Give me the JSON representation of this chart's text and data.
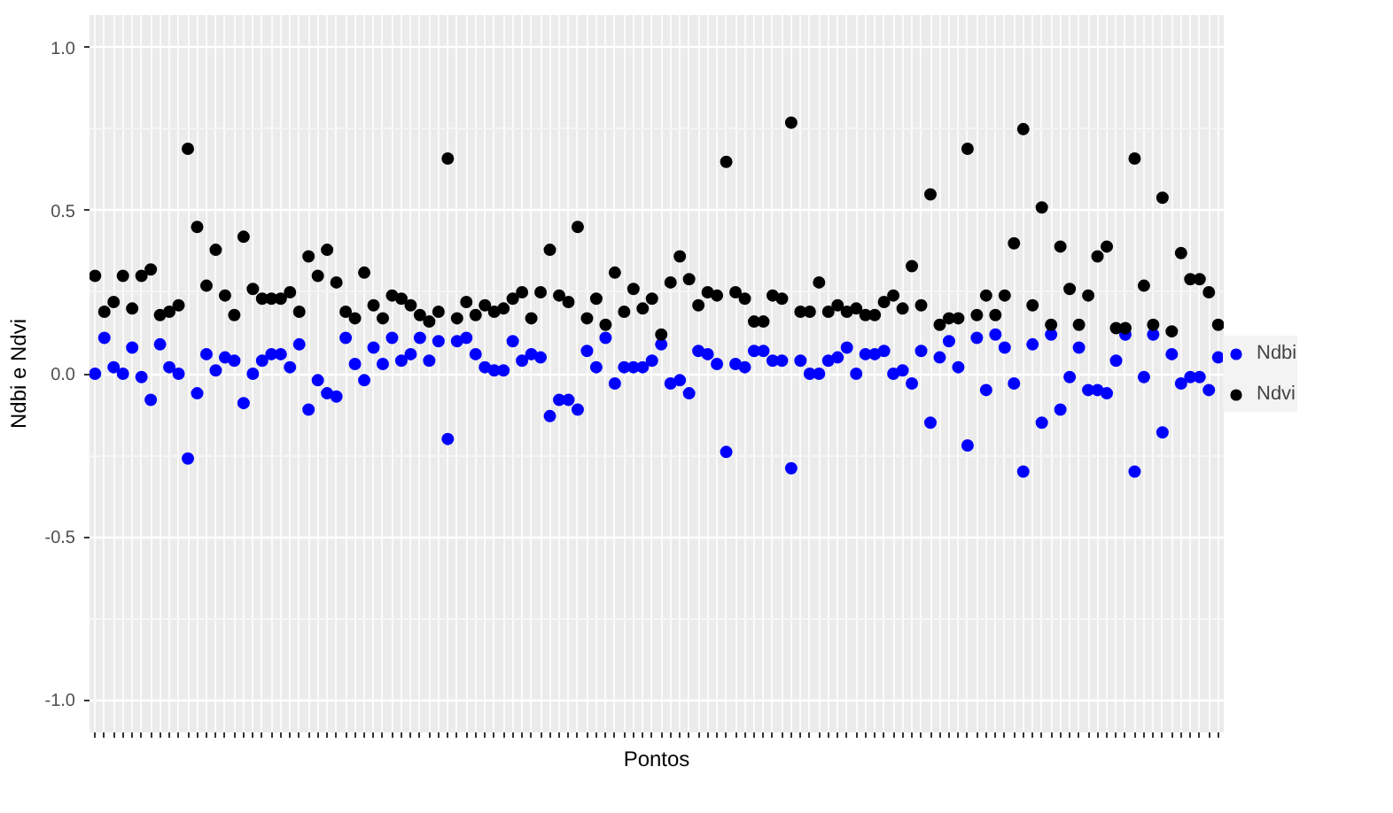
{
  "chart_data": {
    "type": "scatter",
    "xlabel": "Pontos",
    "ylabel": "Ndbi e Ndvi",
    "categories": [
      null,
      null,
      null,
      null,
      null,
      null,
      null,
      null,
      null,
      null,
      null,
      null,
      null,
      null,
      null,
      null,
      null,
      null,
      null,
      null,
      null,
      null,
      null,
      null,
      null,
      null,
      null,
      null,
      null,
      null,
      null,
      null,
      null,
      null,
      null,
      null,
      null,
      null,
      null,
      null,
      null,
      null,
      null,
      null,
      null,
      null,
      null,
      null,
      null,
      null,
      null,
      null,
      null,
      null,
      null,
      null,
      null,
      null,
      null,
      null,
      null,
      null,
      null,
      null,
      null,
      null,
      null,
      null,
      null,
      null,
      null,
      null,
      null,
      null,
      null,
      null,
      null,
      null,
      null,
      null,
      null,
      null,
      null,
      null,
      null,
      null,
      null,
      null,
      null,
      null,
      null,
      null,
      null,
      null,
      null,
      null,
      null,
      null,
      null,
      null,
      null,
      null,
      null,
      null,
      null,
      null,
      null,
      null,
      null,
      null,
      null,
      null,
      null,
      null,
      null,
      null,
      null,
      null,
      null,
      null,
      null,
      null
    ],
    "series": [
      {
        "name": "Ndbi",
        "color": "#0000ff",
        "values": [
          0.0,
          0.11,
          0.02,
          0.0,
          0.08,
          -0.01,
          -0.08,
          0.09,
          0.02,
          0.0,
          -0.26,
          -0.06,
          0.06,
          0.01,
          0.05,
          0.04,
          -0.09,
          0.0,
          0.04,
          0.06,
          0.06,
          0.02,
          0.09,
          -0.11,
          -0.02,
          -0.06,
          -0.07,
          0.11,
          0.03,
          -0.02,
          0.08,
          0.03,
          0.11,
          0.04,
          0.06,
          0.11,
          0.04,
          0.1,
          -0.2,
          0.1,
          0.11,
          0.06,
          0.02,
          0.01,
          0.01,
          0.1,
          0.04,
          0.06,
          0.05,
          -0.13,
          -0.08,
          -0.08,
          -0.11,
          0.07,
          0.02,
          0.11,
          -0.03,
          0.02,
          0.02,
          0.02,
          0.04,
          0.09,
          -0.03,
          -0.02,
          -0.06,
          0.07,
          0.06,
          0.03,
          -0.24,
          0.03,
          0.02,
          0.07,
          0.07,
          0.04,
          0.04,
          -0.29,
          0.04,
          0.0,
          0.0,
          0.04,
          0.05,
          0.08,
          0.0,
          0.06,
          0.06,
          0.07,
          0.0,
          0.01,
          -0.03,
          0.07,
          -0.15,
          0.05,
          0.1,
          0.02,
          -0.22,
          0.11,
          -0.05,
          0.12,
          0.08,
          -0.03,
          -0.3,
          0.09,
          -0.15,
          0.12,
          -0.11,
          -0.01,
          0.08,
          -0.05,
          -0.05,
          -0.06,
          0.04,
          0.12,
          -0.3,
          -0.01,
          0.12,
          -0.18,
          0.06,
          -0.03,
          -0.01,
          -0.01,
          -0.05,
          0.05
        ]
      },
      {
        "name": "Ndvi",
        "color": "#000000",
        "values": [
          0.3,
          0.19,
          0.22,
          0.3,
          0.2,
          0.3,
          0.32,
          0.18,
          0.19,
          0.21,
          0.69,
          0.45,
          0.27,
          0.38,
          0.24,
          0.18,
          0.42,
          0.26,
          0.23,
          0.23,
          0.23,
          0.25,
          0.19,
          0.36,
          0.3,
          0.38,
          0.28,
          0.19,
          0.17,
          0.31,
          0.21,
          0.17,
          0.24,
          0.23,
          0.21,
          0.18,
          0.16,
          0.19,
          0.66,
          0.17,
          0.22,
          0.18,
          0.21,
          0.19,
          0.2,
          0.23,
          0.25,
          0.17,
          0.25,
          0.38,
          0.24,
          0.22,
          0.45,
          0.17,
          0.23,
          0.15,
          0.31,
          0.19,
          0.26,
          0.2,
          0.23,
          0.12,
          0.28,
          0.36,
          0.29,
          0.21,
          0.25,
          0.24,
          0.65,
          0.25,
          0.23,
          0.16,
          0.16,
          0.24,
          0.23,
          0.77,
          0.19,
          0.19,
          0.28,
          0.19,
          0.21,
          0.19,
          0.2,
          0.18,
          0.18,
          0.22,
          0.24,
          0.2,
          0.33,
          0.21,
          0.55,
          0.15,
          0.17,
          0.17,
          0.69,
          0.18,
          0.24,
          0.18,
          0.24,
          0.4,
          0.75,
          0.21,
          0.51,
          0.15,
          0.39,
          0.26,
          0.15,
          0.24,
          0.36,
          0.39,
          0.14,
          0.14,
          0.66,
          0.27,
          0.15,
          0.54,
          0.13,
          0.37,
          0.29,
          0.29,
          0.25,
          0.15
        ]
      }
    ],
    "ylim": [
      -1.1,
      1.1
    ],
    "yticks": [
      {
        "value": -1.0,
        "label": "-1.0"
      },
      {
        "value": -0.5,
        "label": "-0.5"
      },
      {
        "value": 0.0,
        "label": "0.0"
      },
      {
        "value": 0.5,
        "label": "0.5"
      },
      {
        "value": 1.0,
        "label": "1.0"
      }
    ],
    "grid": true,
    "legend": "right",
    "marker": "circle",
    "tick_labels": "y"
  }
}
